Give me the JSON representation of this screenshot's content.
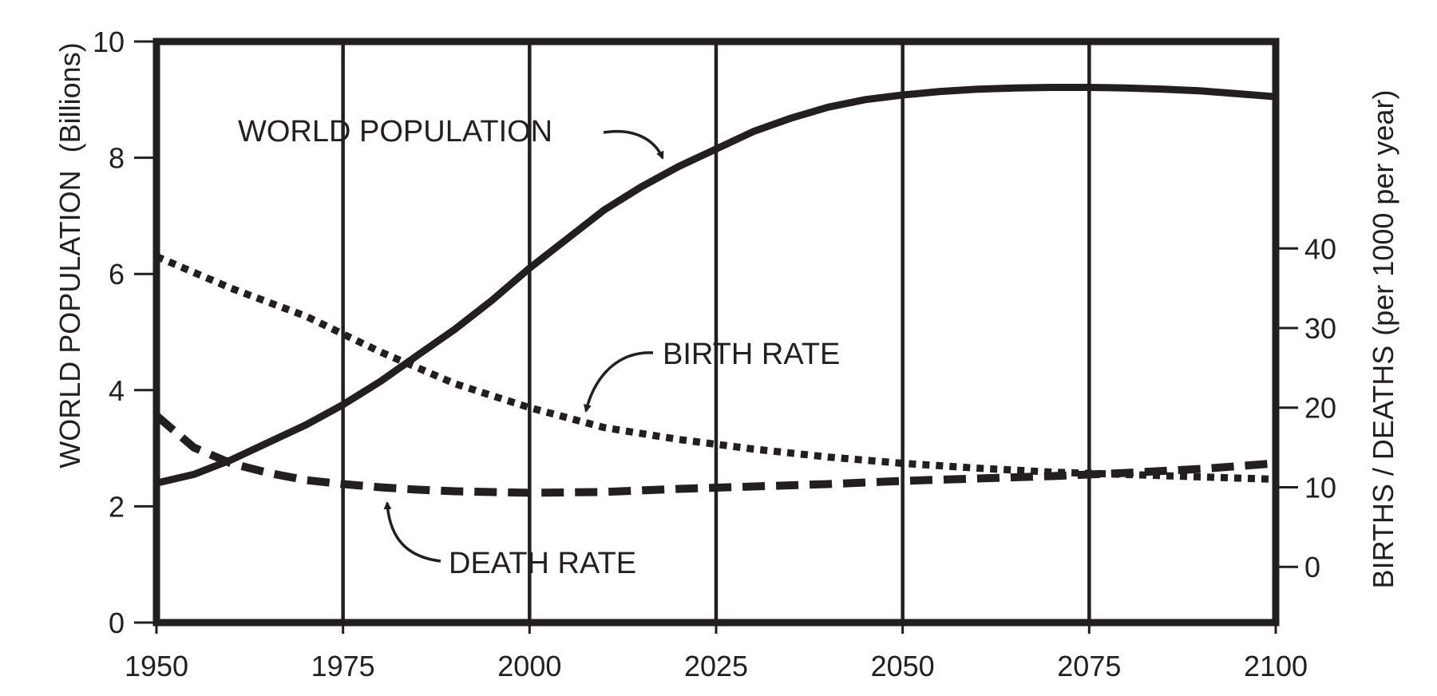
{
  "chart_data": {
    "type": "line",
    "title": "",
    "x_ticks": [
      "1950",
      "1975",
      "2000",
      "2025",
      "2050",
      "2075",
      "2100"
    ],
    "xlim": [
      1950,
      2100
    ],
    "y_left": {
      "label": "WORLD POPULATION",
      "unit": "(Billions)",
      "ticks": [
        "0",
        "2",
        "4",
        "6",
        "8",
        "10"
      ],
      "lim": [
        0,
        10
      ]
    },
    "y_right": {
      "label": "BIRTHS / DEATHS",
      "unit": "(per 1000 per year)",
      "ticks": [
        "0",
        "10",
        "20",
        "30",
        "40"
      ],
      "lim": [
        -7,
        66
      ]
    },
    "vertical_gridlines": true,
    "colors": {
      "line": "#231f20",
      "background": "#ffffff"
    },
    "series": [
      {
        "name": "WORLD POPULATION",
        "axis": "left",
        "style": "solid",
        "x": [
          1950,
          1955,
          1960,
          1965,
          1970,
          1975,
          1980,
          1985,
          1990,
          1995,
          2000,
          2005,
          2010,
          2015,
          2020,
          2025,
          2030,
          2035,
          2040,
          2045,
          2050,
          2055,
          2060,
          2065,
          2070,
          2075,
          2080,
          2085,
          2090,
          2095,
          2100
        ],
        "values": [
          2.4,
          2.55,
          2.8,
          3.1,
          3.4,
          3.75,
          4.15,
          4.6,
          5.05,
          5.55,
          6.1,
          6.6,
          7.1,
          7.5,
          7.85,
          8.15,
          8.45,
          8.68,
          8.87,
          9.0,
          9.08,
          9.14,
          9.18,
          9.2,
          9.21,
          9.21,
          9.2,
          9.18,
          9.15,
          9.1,
          9.05
        ]
      },
      {
        "name": "BIRTH RATE",
        "axis": "right",
        "style": "dotted",
        "x": [
          1950,
          1960,
          1970,
          1980,
          1990,
          2000,
          2010,
          2020,
          2030,
          2040,
          2050,
          2060,
          2070,
          2080,
          2090,
          2100
        ],
        "values": [
          39,
          35,
          31.5,
          27,
          23,
          20,
          17.5,
          16,
          14.8,
          13.8,
          13,
          12.4,
          11.9,
          11.6,
          11.3,
          11
        ]
      },
      {
        "name": "DEATH RATE",
        "axis": "right",
        "style": "dashed",
        "x": [
          1950,
          1955,
          1960,
          1965,
          1970,
          1975,
          1980,
          1985,
          1990,
          2000,
          2010,
          2020,
          2030,
          2040,
          2050,
          2060,
          2070,
          2080,
          2090,
          2100
        ],
        "values": [
          19,
          15,
          13,
          11.8,
          10.9,
          10.4,
          10,
          9.7,
          9.5,
          9.3,
          9.4,
          9.8,
          10.1,
          10.4,
          10.8,
          11.1,
          11.4,
          11.8,
          12.3,
          13
        ]
      }
    ],
    "annotations": [
      {
        "text": "WORLD POPULATION",
        "points_to": "WORLD POPULATION"
      },
      {
        "text": "BIRTH RATE",
        "points_to": "BIRTH RATE"
      },
      {
        "text": "DEATH RATE",
        "points_to": "DEATH RATE"
      }
    ]
  }
}
